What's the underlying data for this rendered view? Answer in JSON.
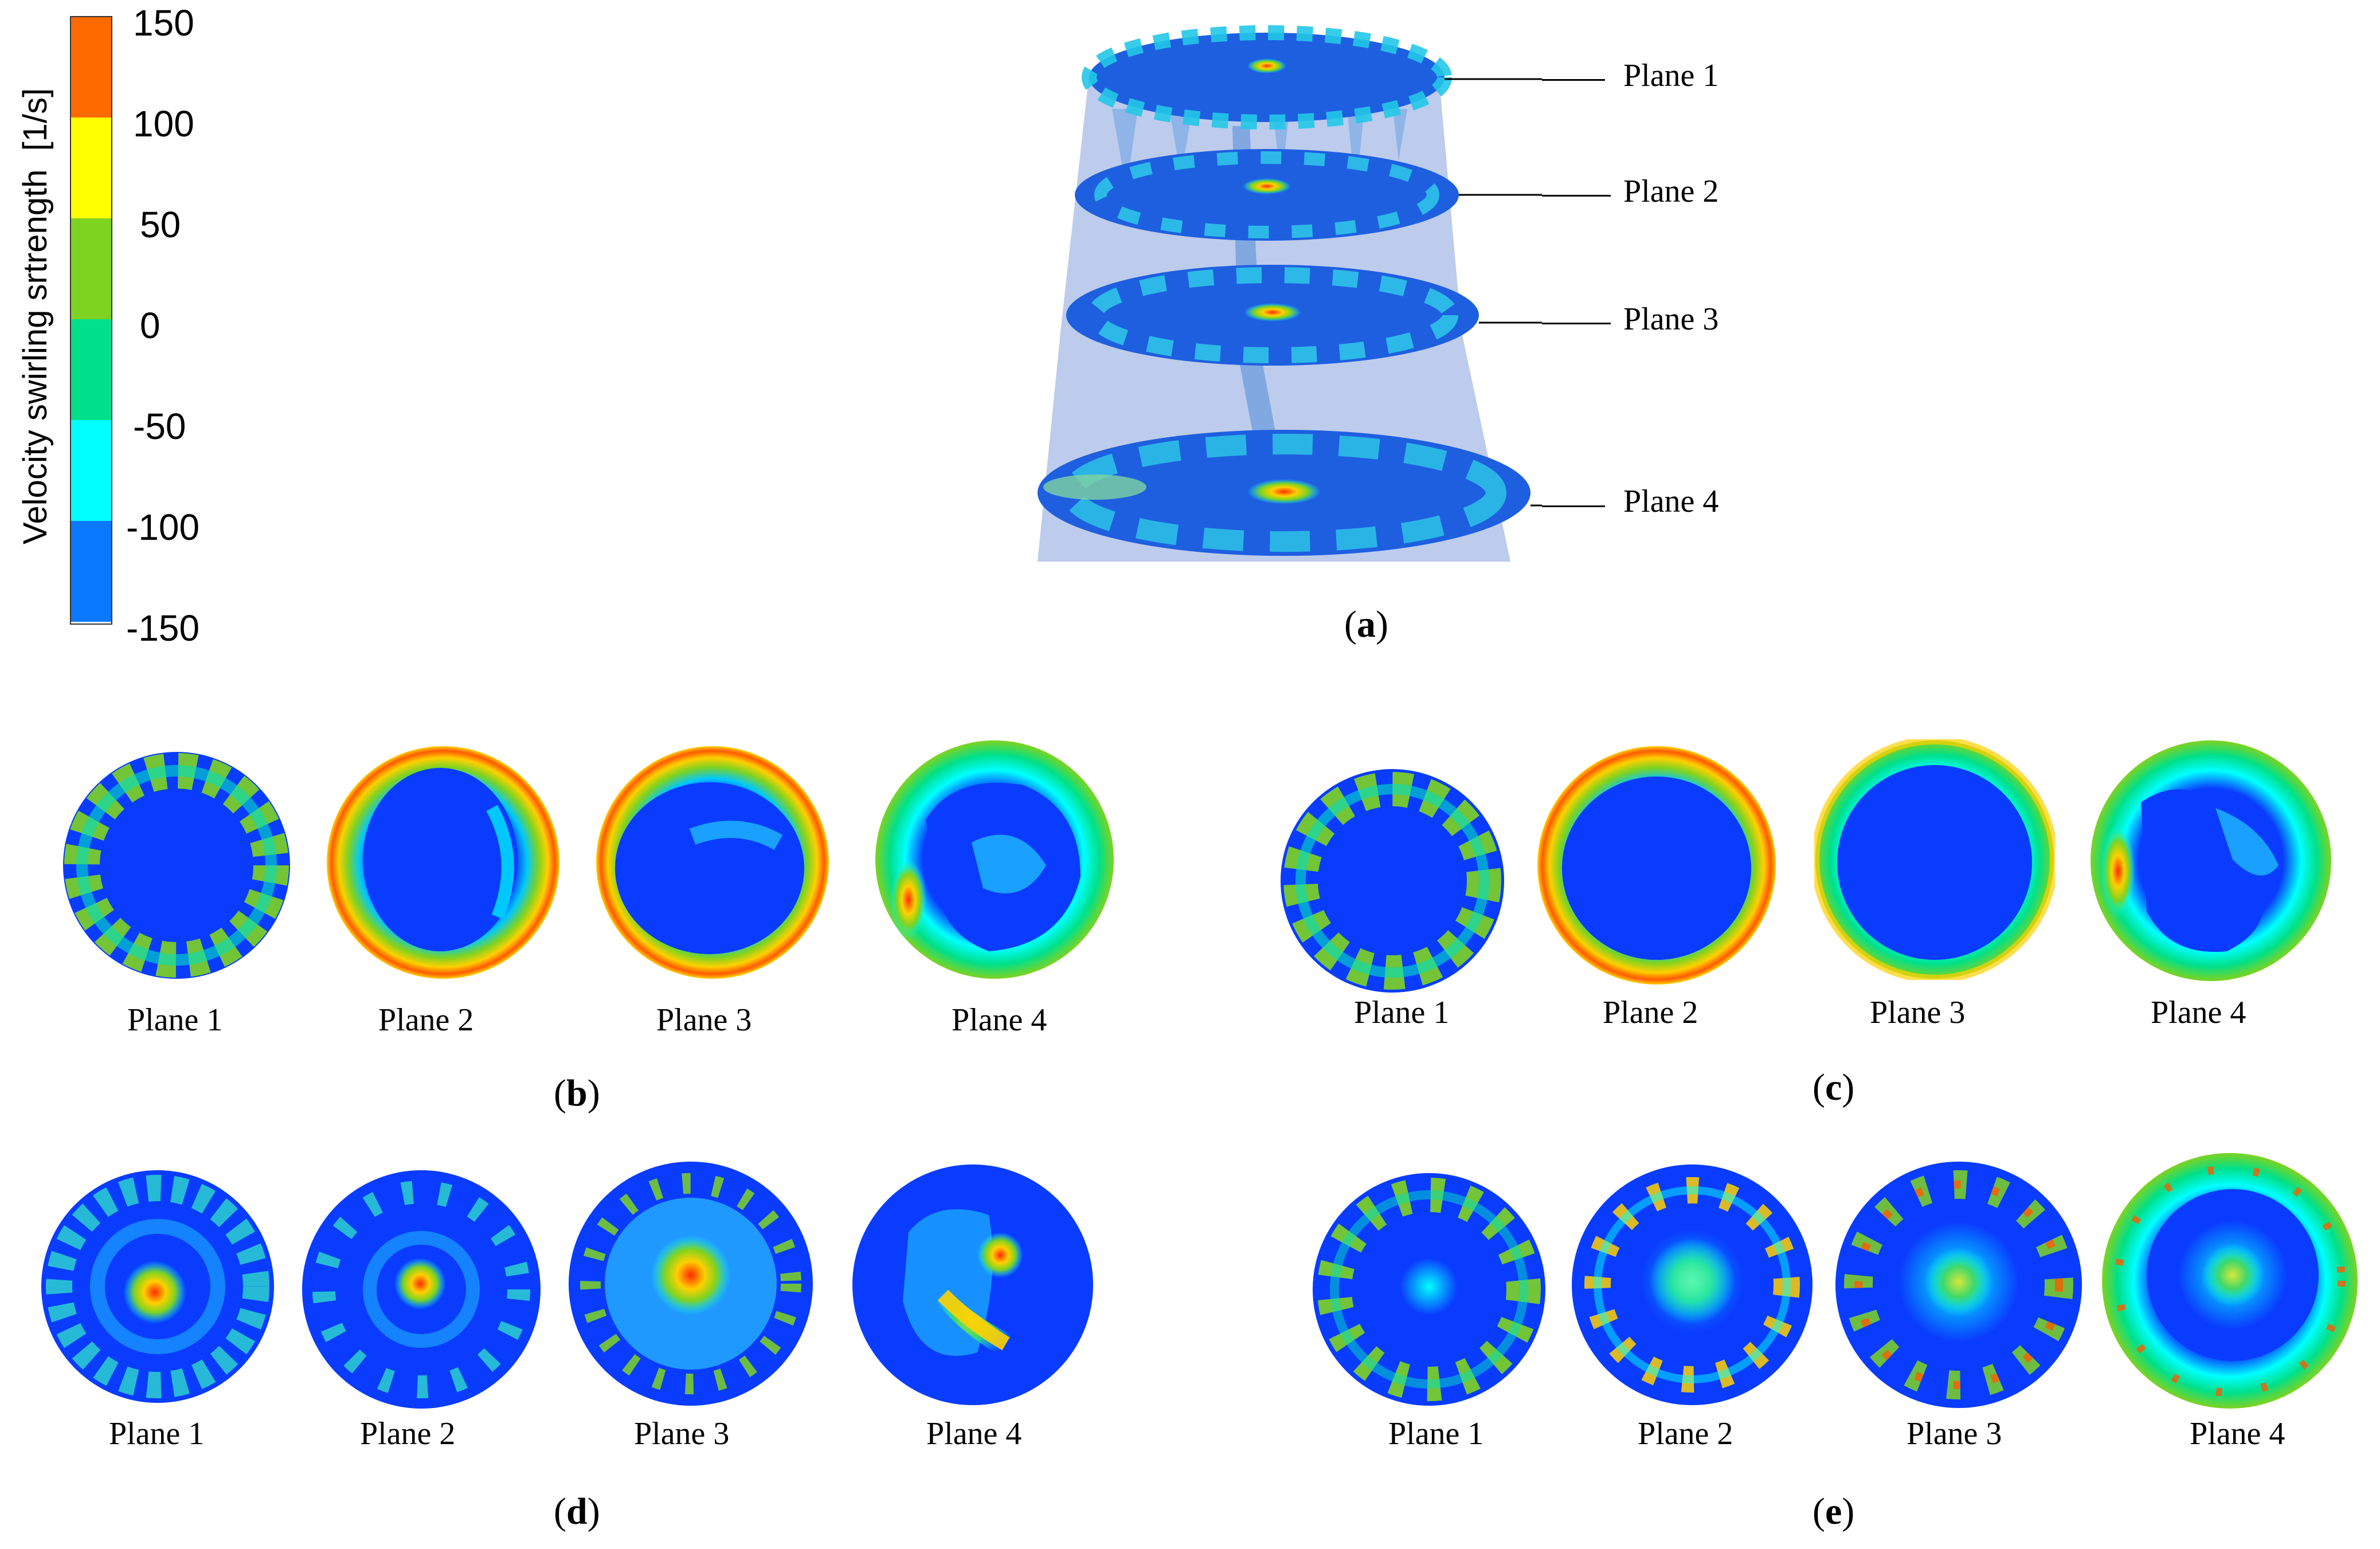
{
  "colorbar": {
    "title": "Velocity swirling srtrength",
    "unit": "[1/s]",
    "ticks": [
      "150",
      "100",
      "50",
      "0",
      "-50",
      "-100",
      "-150"
    ],
    "colors": [
      "#ff6a00",
      "#ffff00",
      "#7ed321",
      "#00e08a",
      "#00ffff",
      "#0a78ff"
    ]
  },
  "panel_a": {
    "label": "a",
    "callouts": [
      "Plane 1",
      "Plane 2",
      "Plane 3",
      "Plane 4"
    ]
  },
  "panels": [
    {
      "label": "b",
      "planes": [
        "Plane 1",
        "Plane 2",
        "Plane 3",
        "Plane 4"
      ]
    },
    {
      "label": "c",
      "planes": [
        "Plane 1",
        "Plane 2",
        "Plane 3",
        "Plane 4"
      ]
    },
    {
      "label": "d",
      "planes": [
        "Plane 1",
        "Plane 2",
        "Plane 3",
        "Plane 4"
      ]
    },
    {
      "label": "e",
      "planes": [
        "Plane 1",
        "Plane 2",
        "Plane 3",
        "Plane 4"
      ]
    }
  ]
}
